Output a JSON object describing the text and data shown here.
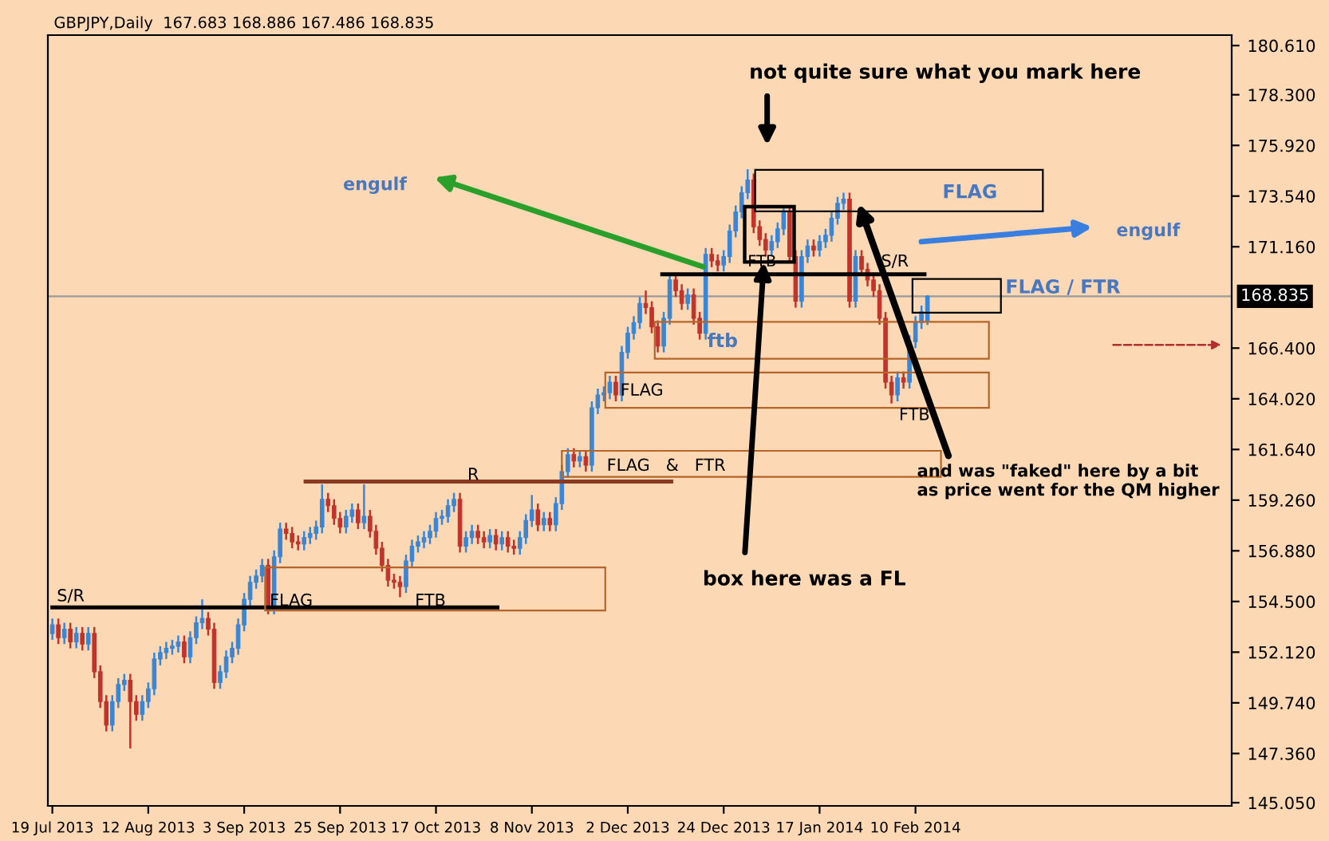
{
  "chart_data": {
    "type": "candlestick",
    "title": "GBPJPY,Daily",
    "subtitle": "167.683 168.886 167.486 168.835",
    "categories": [
      "19 Jul 2013",
      null,
      null,
      null,
      null,
      null,
      null,
      null,
      null,
      null,
      null,
      null,
      null,
      null,
      null,
      null,
      "12 Aug 2013",
      null,
      null,
      null,
      null,
      null,
      null,
      null,
      null,
      null,
      null,
      null,
      null,
      null,
      null,
      null,
      "3 Sep 2013",
      null,
      null,
      null,
      null,
      null,
      null,
      null,
      null,
      null,
      null,
      null,
      null,
      null,
      null,
      null,
      "25 Sep 2013",
      null,
      null,
      null,
      null,
      null,
      null,
      null,
      null,
      null,
      null,
      null,
      null,
      null,
      null,
      null,
      "17 Oct 2013",
      null,
      null,
      null,
      null,
      null,
      null,
      null,
      null,
      null,
      null,
      null,
      null,
      null,
      null,
      null,
      "8 Nov 2013",
      null,
      null,
      null,
      null,
      null,
      null,
      null,
      null,
      null,
      null,
      null,
      null,
      null,
      null,
      null,
      "2 Dec 2013",
      null,
      null,
      null,
      null,
      null,
      null,
      null,
      null,
      null,
      null,
      null,
      null,
      null,
      null,
      null,
      "24 Dec 2013",
      null,
      null,
      null,
      null,
      null,
      null,
      null,
      null,
      null,
      null,
      null,
      null,
      null,
      null,
      null,
      "17 Jan 2014",
      null,
      null,
      null,
      null,
      null,
      null,
      null,
      null,
      null,
      null,
      null,
      null,
      null,
      null,
      null,
      "10 Feb 2014",
      null,
      null,
      null,
      null,
      null,
      null,
      null,
      null,
      null,
      null,
      null,
      null,
      null,
      null,
      null,
      null,
      null,
      null,
      null,
      null,
      null,
      null,
      null,
      null,
      null,
      null,
      null,
      null,
      null,
      null,
      null,
      null,
      null,
      null,
      null,
      null,
      null,
      null,
      null,
      null,
      null,
      null,
      null,
      null,
      null,
      null,
      null,
      null,
      null,
      null,
      null,
      null
    ],
    "colors": [
      "#3b86d4",
      "#c0342b",
      "#3b86d4",
      "#c0342b",
      "#3b86d4",
      "#c0342b",
      "#3b86d4",
      "#c0342b",
      "#c0342b",
      "#c0342b",
      "#3b86d4",
      "#3b86d4",
      "#3b86d4",
      "#c0342b",
      "#c0342b",
      "#3b86d4",
      "#3b86d4",
      "#3b86d4",
      "#3b86d4",
      "#3b86d4",
      "#3b86d4",
      "#3b86d4",
      "#c0342b",
      "#3b86d4",
      "#3b86d4",
      "#3b86d4",
      "#c0342b",
      "#c0342b",
      "#3b86d4",
      "#3b86d4",
      "#3b86d4",
      "#3b86d4",
      "#3b86d4",
      "#3b86d4",
      "#3b86d4",
      "#3b86d4",
      "#c0342b",
      "#3b86d4",
      "#3b86d4",
      "#c0342b",
      "#c0342b",
      "#c0342b",
      "#3b86d4",
      "#3b86d4",
      "#3b86d4",
      "#3b86d4",
      "#c0342b",
      "#c0342b",
      "#c0342b",
      "#3b86d4",
      "#3b86d4",
      "#c0342b",
      "#3b86d4",
      "#c0342b",
      "#c0342b",
      "#c0342b",
      "#c0342b",
      "#c0342b",
      "#c0342b",
      "#3b86d4",
      "#3b86d4",
      "#3b86d4",
      "#3b86d4",
      "#3b86d4",
      "#3b86d4",
      "#3b86d4",
      "#3b86d4",
      "#3b86d4",
      "#c0342b",
      "#3b86d4",
      "#3b86d4",
      "#c0342b",
      "#c0342b",
      "#3b86d4",
      "#c0342b",
      "#3b86d4",
      "#c0342b",
      "#c0342b",
      "#3b86d4",
      "#3b86d4",
      "#3b86d4",
      "#c0342b",
      "#3b86d4",
      "#c0342b",
      "#3b86d4",
      "#3b86d4",
      "#3b86d4",
      "#c0342b",
      "#3b86d4",
      "#c0342b",
      "#3b86d4",
      "#3b86d4",
      "#3b86d4",
      "#3b86d4",
      "#c0342b",
      "#3b86d4",
      "#3b86d4",
      "#3b86d4",
      "#3b86d4",
      "#c0342b",
      "#c0342b",
      "#c0342b",
      "#3b86d4",
      "#3b86d4",
      "#c0342b",
      "#c0342b",
      "#3b86d4",
      "#c0342b",
      "#c0342b",
      "#3b86d4",
      "#c0342b",
      "#c0342b",
      "#3b86d4",
      "#3b86d4",
      "#3b86d4",
      "#3b86d4",
      "#3b86d4",
      "#c0342b",
      "#c0342b",
      "#c0342b",
      "#3b86d4",
      "#3b86d4",
      "#3b86d4",
      "#c0342b",
      "#c0342b",
      "#3b86d4",
      "#3b86d4",
      "#c0342b",
      "#3b86d4",
      "#3b86d4",
      "#3b86d4",
      "#3b86d4",
      "#3b86d4",
      "#c0342b",
      "#3b86d4",
      "#c0342b",
      "#c0342b",
      "#c0342b",
      "#c0342b",
      "#c0342b",
      "#c0342b",
      "#3b86d4",
      "#c0342b",
      "#3b86d4",
      "#3b86d4",
      "#3b86d4",
      "#3b86d4",
      null,
      null,
      null,
      null,
      null,
      null,
      null,
      null,
      null,
      null,
      null,
      null,
      null,
      null,
      null,
      null,
      null,
      null,
      null,
      null,
      null,
      null,
      null,
      null,
      null,
      null,
      null,
      null,
      null,
      null,
      null,
      null,
      null,
      null,
      null,
      null,
      null,
      null,
      null,
      null,
      null,
      null,
      null,
      null,
      null,
      null,
      null,
      null,
      null,
      null
    ],
    "ohlc": [
      [
        153.0,
        153.7,
        152.7,
        153.4
      ],
      [
        153.4,
        153.7,
        152.5,
        152.8
      ],
      [
        152.8,
        153.5,
        152.5,
        153.2
      ],
      [
        153.2,
        153.5,
        152.3,
        152.6
      ],
      [
        152.6,
        153.3,
        152.3,
        153.0
      ],
      [
        153.0,
        153.3,
        152.2,
        152.5
      ],
      [
        152.5,
        153.3,
        152.2,
        153.0
      ],
      [
        153.0,
        153.3,
        150.9,
        151.2
      ],
      [
        151.2,
        151.5,
        149.5,
        149.8
      ],
      [
        149.8,
        150.1,
        148.4,
        148.7
      ],
      [
        148.7,
        150.1,
        148.4,
        149.8
      ],
      [
        149.8,
        150.9,
        149.5,
        150.6
      ],
      [
        150.6,
        151.1,
        150.3,
        150.8
      ],
      [
        150.8,
        151.1,
        147.6,
        149.8
      ],
      [
        149.8,
        150.1,
        148.9,
        149.2
      ],
      [
        149.2,
        150.1,
        148.9,
        149.8
      ],
      [
        149.8,
        150.7,
        149.5,
        150.4
      ],
      [
        150.4,
        152.1,
        150.1,
        151.8
      ],
      [
        151.8,
        152.4,
        151.5,
        152.1
      ],
      [
        152.1,
        152.6,
        151.8,
        152.3
      ],
      [
        152.3,
        152.7,
        152.0,
        152.4
      ],
      [
        152.4,
        152.9,
        152.1,
        152.6
      ],
      [
        152.6,
        152.9,
        151.6,
        151.9
      ],
      [
        151.9,
        153.1,
        151.6,
        152.8
      ],
      [
        152.8,
        153.8,
        152.5,
        153.5
      ],
      [
        153.5,
        154.6,
        153.2,
        153.7
      ],
      [
        153.7,
        154.0,
        152.9,
        153.2
      ],
      [
        153.2,
        153.5,
        150.4,
        150.7
      ],
      [
        150.7,
        151.5,
        150.4,
        151.2
      ],
      [
        151.2,
        152.2,
        150.9,
        151.9
      ],
      [
        151.9,
        152.6,
        151.6,
        152.3
      ],
      [
        152.3,
        153.7,
        152.0,
        153.4
      ],
      [
        153.4,
        154.9,
        153.1,
        154.6
      ],
      [
        154.6,
        155.7,
        154.3,
        155.4
      ],
      [
        155.4,
        156.0,
        155.1,
        155.7
      ],
      [
        155.7,
        156.5,
        155.4,
        156.2
      ],
      [
        156.2,
        156.5,
        153.9,
        154.2
      ],
      [
        154.2,
        156.9,
        153.9,
        156.6
      ],
      [
        156.6,
        158.2,
        156.3,
        157.9
      ],
      [
        157.9,
        158.2,
        157.4,
        157.7
      ],
      [
        157.7,
        158.0,
        157.0,
        157.3
      ],
      [
        157.3,
        157.6,
        156.9,
        157.2
      ],
      [
        157.2,
        157.8,
        156.9,
        157.5
      ],
      [
        157.5,
        158.0,
        157.2,
        157.7
      ],
      [
        157.7,
        158.3,
        157.4,
        158.0
      ],
      [
        158.0,
        160.0,
        157.7,
        159.3
      ],
      [
        159.3,
        159.6,
        158.7,
        159.0
      ],
      [
        159.0,
        159.3,
        158.1,
        158.4
      ],
      [
        158.4,
        158.7,
        157.7,
        158.0
      ],
      [
        158.0,
        158.8,
        157.7,
        158.5
      ],
      [
        158.5,
        159.1,
        158.2,
        158.8
      ],
      [
        158.8,
        159.1,
        157.9,
        158.2
      ],
      [
        158.2,
        160.0,
        157.9,
        158.5
      ],
      [
        158.5,
        158.8,
        157.5,
        157.8
      ],
      [
        157.8,
        158.1,
        156.7,
        157.0
      ],
      [
        157.0,
        157.3,
        155.9,
        156.2
      ],
      [
        156.2,
        156.5,
        155.2,
        155.5
      ],
      [
        155.5,
        155.8,
        155.1,
        155.4
      ],
      [
        155.4,
        155.7,
        154.7,
        155.2
      ],
      [
        155.2,
        156.7,
        154.9,
        156.4
      ],
      [
        156.4,
        157.4,
        156.1,
        157.1
      ],
      [
        157.1,
        157.6,
        156.8,
        157.3
      ],
      [
        157.3,
        157.8,
        157.0,
        157.5
      ],
      [
        157.5,
        158.1,
        157.2,
        157.8
      ],
      [
        157.8,
        158.7,
        157.5,
        158.4
      ],
      [
        158.4,
        158.8,
        158.1,
        158.5
      ],
      [
        158.5,
        159.3,
        158.2,
        159.0
      ],
      [
        159.0,
        159.6,
        158.7,
        159.3
      ],
      [
        159.3,
        159.6,
        156.8,
        157.1
      ],
      [
        157.1,
        157.8,
        156.8,
        157.5
      ],
      [
        157.5,
        158.1,
        157.2,
        157.8
      ],
      [
        157.8,
        158.1,
        157.2,
        157.5
      ],
      [
        157.5,
        157.8,
        157.0,
        157.3
      ],
      [
        157.3,
        157.9,
        157.0,
        157.6
      ],
      [
        157.6,
        157.9,
        156.9,
        157.2
      ],
      [
        157.2,
        157.8,
        156.9,
        157.5
      ],
      [
        157.5,
        157.8,
        156.8,
        157.1
      ],
      [
        157.1,
        157.4,
        156.7,
        157.0
      ],
      [
        157.0,
        157.8,
        156.7,
        157.5
      ],
      [
        157.5,
        158.6,
        157.2,
        158.3
      ],
      [
        158.3,
        159.5,
        158.0,
        158.8
      ],
      [
        158.8,
        159.1,
        157.8,
        158.1
      ],
      [
        158.1,
        158.7,
        157.8,
        158.4
      ],
      [
        158.4,
        158.7,
        157.8,
        158.1
      ],
      [
        158.1,
        159.4,
        157.8,
        159.1
      ],
      [
        159.1,
        160.9,
        158.8,
        160.6
      ],
      [
        160.6,
        161.7,
        160.3,
        161.4
      ],
      [
        161.4,
        161.7,
        160.8,
        161.1
      ],
      [
        161.1,
        161.6,
        160.8,
        161.3
      ],
      [
        161.3,
        161.6,
        160.6,
        160.9
      ],
      [
        160.9,
        163.9,
        160.6,
        163.6
      ],
      [
        163.6,
        164.5,
        163.3,
        164.2
      ],
      [
        164.2,
        164.6,
        163.9,
        164.3
      ],
      [
        164.3,
        165.1,
        164.0,
        164.8
      ],
      [
        164.8,
        165.1,
        163.9,
        164.2
      ],
      [
        164.2,
        166.5,
        163.9,
        166.2
      ],
      [
        166.2,
        167.4,
        165.9,
        167.1
      ],
      [
        167.1,
        167.9,
        166.8,
        167.6
      ],
      [
        167.6,
        168.8,
        167.3,
        168.5
      ],
      [
        168.5,
        169.1,
        168.0,
        168.3
      ],
      [
        168.3,
        168.6,
        167.1,
        167.4
      ],
      [
        167.4,
        167.7,
        166.2,
        166.5
      ],
      [
        166.5,
        168.1,
        166.2,
        167.8
      ],
      [
        167.8,
        169.9,
        167.5,
        169.6
      ],
      [
        169.6,
        169.9,
        168.8,
        169.1
      ],
      [
        169.1,
        169.4,
        168.2,
        168.5
      ],
      [
        168.5,
        169.2,
        168.2,
        168.9
      ],
      [
        168.9,
        169.2,
        167.5,
        167.8
      ],
      [
        167.8,
        168.1,
        166.8,
        167.1
      ],
      [
        167.1,
        171.1,
        166.8,
        170.8
      ],
      [
        170.8,
        171.1,
        170.2,
        170.5
      ],
      [
        170.5,
        170.8,
        170.0,
        170.3
      ],
      [
        170.3,
        171.0,
        170.0,
        170.7
      ],
      [
        170.7,
        172.2,
        170.4,
        171.9
      ],
      [
        171.9,
        173.1,
        171.6,
        172.8
      ],
      [
        172.8,
        174.0,
        172.5,
        173.7
      ],
      [
        173.7,
        174.8,
        173.4,
        174.3
      ],
      [
        174.3,
        174.6,
        171.8,
        172.1
      ],
      [
        172.1,
        172.4,
        171.2,
        171.5
      ],
      [
        171.5,
        171.8,
        170.7,
        171.0
      ],
      [
        171.0,
        171.7,
        170.7,
        171.4
      ],
      [
        171.4,
        172.3,
        171.1,
        172.0
      ],
      [
        172.0,
        173.1,
        171.7,
        172.8
      ],
      [
        172.8,
        173.1,
        170.4,
        170.7
      ],
      [
        170.7,
        171.0,
        168.3,
        168.6
      ],
      [
        168.6,
        171.0,
        168.3,
        170.7
      ],
      [
        170.7,
        171.5,
        170.4,
        171.2
      ],
      [
        171.2,
        171.5,
        170.7,
        171.0
      ],
      [
        171.0,
        171.7,
        170.7,
        171.4
      ],
      [
        171.4,
        172.0,
        171.1,
        171.7
      ],
      [
        171.7,
        172.8,
        171.4,
        172.5
      ],
      [
        172.5,
        173.5,
        172.2,
        173.2
      ],
      [
        173.2,
        173.7,
        172.9,
        173.4
      ],
      [
        173.4,
        173.7,
        168.3,
        168.6
      ],
      [
        168.6,
        171.0,
        168.3,
        170.7
      ],
      [
        170.7,
        171.0,
        169.8,
        170.1
      ],
      [
        170.1,
        170.4,
        169.3,
        169.6
      ],
      [
        169.6,
        169.9,
        168.8,
        169.1
      ],
      [
        169.1,
        169.4,
        167.5,
        167.8
      ],
      [
        167.8,
        168.1,
        164.5,
        164.8
      ],
      [
        164.8,
        165.1,
        163.8,
        164.2
      ],
      [
        164.2,
        165.3,
        163.9,
        165.0
      ],
      [
        165.0,
        165.3,
        164.5,
        164.8
      ],
      [
        164.8,
        167.0,
        164.5,
        166.7
      ],
      [
        166.7,
        167.9,
        166.4,
        167.6
      ],
      [
        167.6,
        168.4,
        167.3,
        168.1
      ],
      [
        167.683,
        168.886,
        167.486,
        168.835
      ],
      null,
      null,
      null,
      null,
      null,
      null,
      null,
      null,
      null,
      null,
      null,
      null,
      null,
      null,
      null,
      null,
      null,
      null,
      null,
      null,
      null,
      null,
      null,
      null,
      null,
      null,
      null,
      null,
      null,
      null,
      null,
      null,
      null,
      null,
      null,
      null,
      null,
      null,
      null,
      null,
      null,
      null,
      null,
      null,
      null,
      null,
      null,
      null,
      null,
      null
    ],
    "ylim": [
      144.9,
      181.1
    ],
    "yticks": [
      {
        "value": 180.61,
        "label": "180.610"
      },
      {
        "value": 178.3,
        "label": "178.300"
      },
      {
        "value": 175.92,
        "label": "175.920"
      },
      {
        "value": 173.54,
        "label": "173.540"
      },
      {
        "value": 171.16,
        "label": "171.160"
      },
      {
        "value": 166.4,
        "label": "166.400"
      },
      {
        "value": 164.02,
        "label": "164.020"
      },
      {
        "value": 161.64,
        "label": "161.640"
      },
      {
        "value": 159.26,
        "label": "159.260"
      },
      {
        "value": 156.88,
        "label": "156.880"
      },
      {
        "value": 154.5,
        "label": "154.500"
      },
      {
        "value": 152.12,
        "label": "152.120"
      },
      {
        "value": 149.74,
        "label": "149.740"
      },
      {
        "value": 147.36,
        "label": "147.360"
      },
      {
        "value": 145.05,
        "label": "145.050"
      }
    ],
    "ref_lines": [
      {
        "axis": "y",
        "value": 168.835,
        "label": "168.835",
        "color": "#9a9a9a"
      }
    ],
    "grid": false,
    "annotations": [
      "not quite sure what you mark here",
      "engulf",
      "FLAG",
      "engulf",
      "FLAG / FTR",
      "S/R",
      "FTB",
      "and was \"faked\" here by a bit\nas price went for the QM higher",
      "box here was a FL",
      "FTB",
      "ftb",
      "FLAG",
      "FLAG   &   FTR",
      "R",
      "S/R",
      "FLAG",
      "FTB"
    ]
  }
}
